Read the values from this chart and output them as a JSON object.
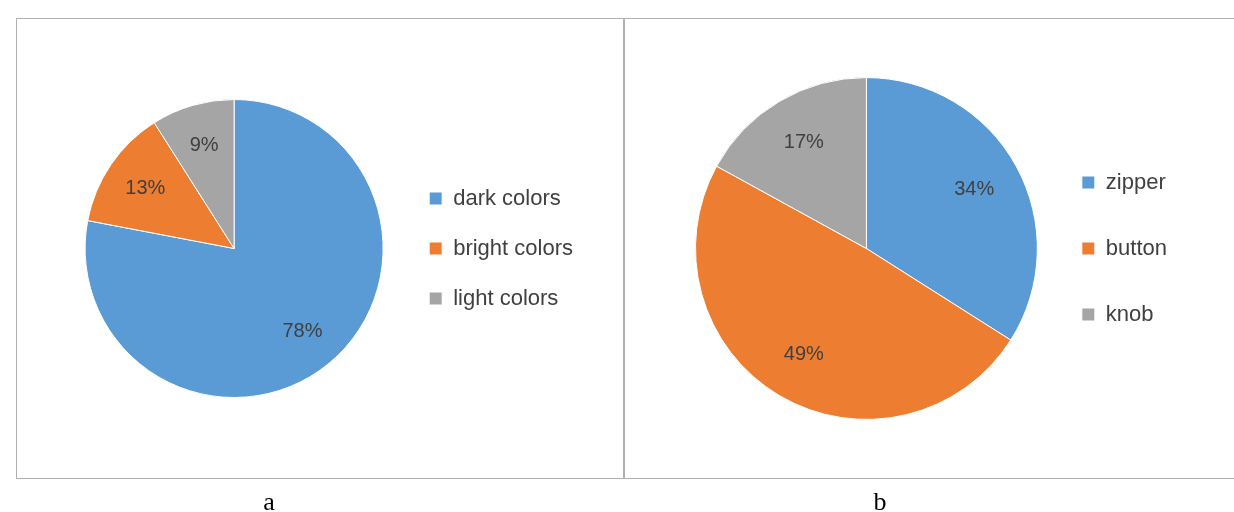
{
  "chart_data": [
    {
      "type": "pie",
      "categories": [
        "dark colors",
        "bright colors",
        "light colors"
      ],
      "values": [
        78,
        13,
        9
      ],
      "colors": [
        "#5b9bd5",
        "#ed7d31",
        "#a5a5a5"
      ],
      "value_labels": [
        "78%",
        "13%",
        "9%"
      ],
      "legend": "right",
      "annotations": [
        "a"
      ]
    },
    {
      "type": "pie",
      "categories": [
        "zipper",
        "button",
        "knob"
      ],
      "values": [
        34,
        49,
        17
      ],
      "colors": [
        "#5b9bd5",
        "#ed7d31",
        "#a5a5a5"
      ],
      "value_labels": [
        "34%",
        "49%",
        "17%"
      ],
      "legend": "right",
      "annotations": [
        "b"
      ]
    }
  ]
}
